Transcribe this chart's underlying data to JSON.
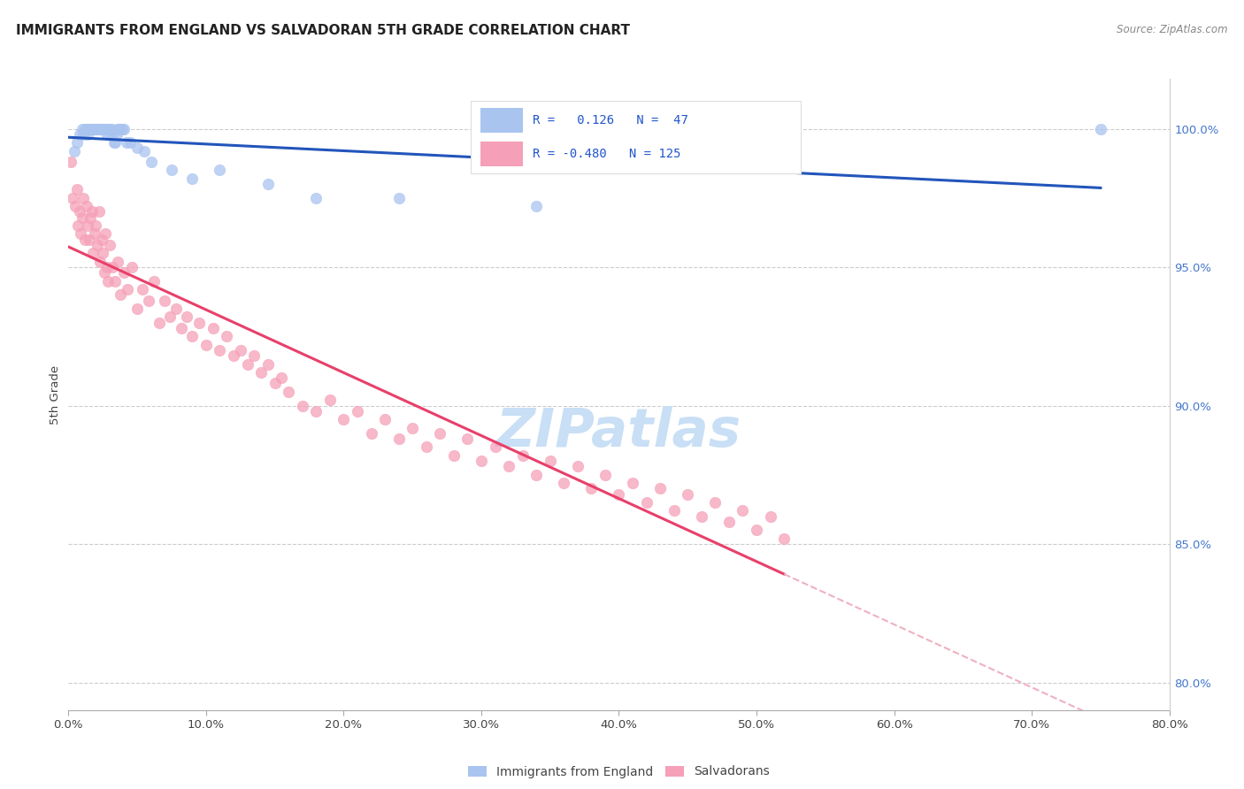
{
  "title": "IMMIGRANTS FROM ENGLAND VS SALVADORAN 5TH GRADE CORRELATION CHART",
  "source": "Source: ZipAtlas.com",
  "ylabel": "5th Grade",
  "y_ticks": [
    80.0,
    85.0,
    90.0,
    95.0,
    100.0
  ],
  "x_range": [
    0.0,
    80.0
  ],
  "y_range": [
    79.0,
    101.8
  ],
  "blue_color": "#aac4f0",
  "blue_line_color": "#2255bb",
  "pink_color": "#f5a0b8",
  "pink_line_color": "#e8406a",
  "pink_dash_color": "#f0b0c0",
  "watermark_color": "#c8dff5",
  "blue_scatter_x": [
    0.4,
    0.6,
    0.8,
    1.0,
    1.1,
    1.2,
    1.3,
    1.4,
    1.5,
    1.6,
    1.7,
    1.8,
    1.9,
    2.0,
    2.1,
    2.2,
    2.3,
    2.4,
    2.5,
    2.6,
    2.7,
    2.8,
    2.9,
    3.0,
    3.1,
    3.2,
    3.3,
    3.4,
    3.5,
    3.6,
    3.7,
    3.8,
    3.9,
    4.0,
    4.2,
    4.5,
    5.0,
    5.5,
    6.0,
    7.5,
    9.0,
    11.0,
    14.5,
    18.0,
    24.0,
    34.0,
    75.0
  ],
  "blue_scatter_y": [
    99.2,
    99.5,
    99.8,
    100.0,
    99.8,
    100.0,
    100.0,
    99.8,
    100.0,
    100.0,
    100.0,
    100.0,
    100.0,
    100.0,
    100.0,
    100.0,
    100.0,
    100.0,
    100.0,
    100.0,
    100.0,
    99.8,
    100.0,
    100.0,
    99.8,
    100.0,
    99.5,
    99.5,
    99.8,
    100.0,
    100.0,
    100.0,
    100.0,
    100.0,
    99.5,
    99.5,
    99.3,
    99.2,
    98.8,
    98.5,
    98.2,
    98.5,
    98.0,
    97.5,
    97.5,
    97.2,
    100.0
  ],
  "pink_scatter_x": [
    0.2,
    0.3,
    0.5,
    0.6,
    0.7,
    0.8,
    0.9,
    1.0,
    1.1,
    1.2,
    1.3,
    1.4,
    1.5,
    1.6,
    1.7,
    1.8,
    1.9,
    2.0,
    2.1,
    2.2,
    2.3,
    2.4,
    2.5,
    2.6,
    2.7,
    2.8,
    2.9,
    3.0,
    3.2,
    3.4,
    3.6,
    3.8,
    4.0,
    4.3,
    4.6,
    5.0,
    5.4,
    5.8,
    6.2,
    6.6,
    7.0,
    7.4,
    7.8,
    8.2,
    8.6,
    9.0,
    9.5,
    10.0,
    10.5,
    11.0,
    11.5,
    12.0,
    12.5,
    13.0,
    13.5,
    14.0,
    14.5,
    15.0,
    15.5,
    16.0,
    17.0,
    18.0,
    19.0,
    20.0,
    21.0,
    22.0,
    23.0,
    24.0,
    25.0,
    26.0,
    27.0,
    28.0,
    29.0,
    30.0,
    31.0,
    32.0,
    33.0,
    34.0,
    35.0,
    36.0,
    37.0,
    38.0,
    39.0,
    40.0,
    41.0,
    42.0,
    43.0,
    44.0,
    45.0,
    46.0,
    47.0,
    48.0,
    49.0,
    50.0,
    51.0,
    52.0
  ],
  "pink_scatter_y": [
    98.8,
    97.5,
    97.2,
    97.8,
    96.5,
    97.0,
    96.2,
    96.8,
    97.5,
    96.0,
    97.2,
    96.5,
    96.0,
    96.8,
    97.0,
    95.5,
    96.2,
    96.5,
    95.8,
    97.0,
    95.2,
    96.0,
    95.5,
    94.8,
    96.2,
    95.0,
    94.5,
    95.8,
    95.0,
    94.5,
    95.2,
    94.0,
    94.8,
    94.2,
    95.0,
    93.5,
    94.2,
    93.8,
    94.5,
    93.0,
    93.8,
    93.2,
    93.5,
    92.8,
    93.2,
    92.5,
    93.0,
    92.2,
    92.8,
    92.0,
    92.5,
    91.8,
    92.0,
    91.5,
    91.8,
    91.2,
    91.5,
    90.8,
    91.0,
    90.5,
    90.0,
    89.8,
    90.2,
    89.5,
    89.8,
    89.0,
    89.5,
    88.8,
    89.2,
    88.5,
    89.0,
    88.2,
    88.8,
    88.0,
    88.5,
    87.8,
    88.2,
    87.5,
    88.0,
    87.2,
    87.8,
    87.0,
    87.5,
    86.8,
    87.2,
    86.5,
    87.0,
    86.2,
    86.8,
    86.0,
    86.5,
    85.8,
    86.2,
    85.5,
    86.0,
    85.2
  ]
}
